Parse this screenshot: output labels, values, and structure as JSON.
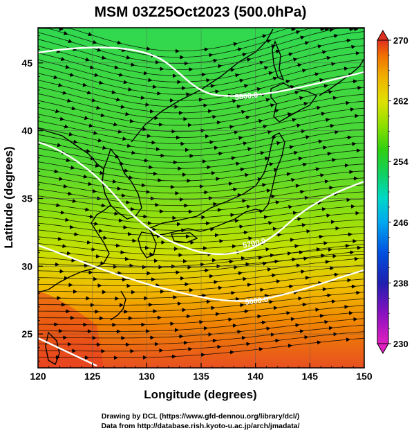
{
  "title": "MSM 03Z25Oct2023 (500.0hPa)",
  "x_axis": {
    "label": "Longitude (degrees)",
    "ticks": [
      "120",
      "125",
      "130",
      "135",
      "140",
      "145",
      "150"
    ],
    "range": [
      120,
      150
    ]
  },
  "y_axis": {
    "label": "Latitude  (degrees)",
    "ticks": [
      "25",
      "30",
      "35",
      "40",
      "45"
    ],
    "range": [
      22.5,
      47.6
    ]
  },
  "colorbar": {
    "ticks": [
      "270",
      "262",
      "254",
      "246",
      "238",
      "230"
    ],
    "range": [
      230,
      270
    ],
    "colors": [
      "#e020c0",
      "#8a10c0",
      "#2020b0",
      "#0050e0",
      "#00a8f0",
      "#00d8c8",
      "#10d060",
      "#30d010",
      "#90e000",
      "#e0e000",
      "#f0b000",
      "#f07000",
      "#e03020"
    ]
  },
  "contour_labels": [
    "5800.0",
    "5700.0",
    "5600.0"
  ],
  "credits": {
    "line1": "Drawing by DCL (https://www.gfd-dennou.org/library/dcl/)",
    "line2": "Data from http://database.rish.kyoto-u.ac.jp/arch/jmadata/"
  }
}
